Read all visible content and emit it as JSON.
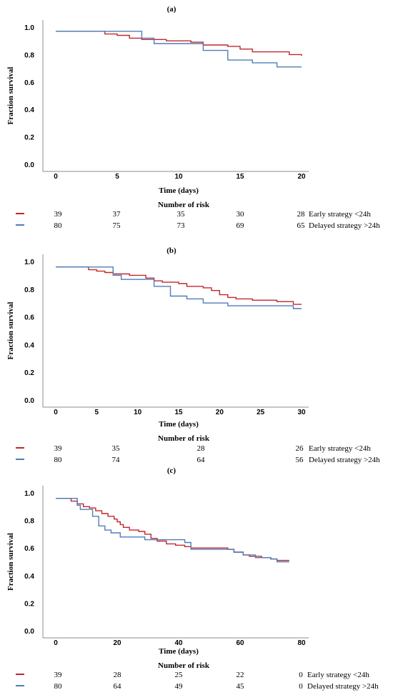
{
  "colors": {
    "early": "#c0272d",
    "delayed": "#4f7db8",
    "axis": "#8c8c8c"
  },
  "chart_data": [
    {
      "type": "line",
      "panel_label": "(a)",
      "xlabel": "Time (days)",
      "ylabel": "Fraction survival",
      "xlim": [
        0,
        20
      ],
      "ylim": [
        0,
        1
      ],
      "xticks": [
        "0",
        "5",
        "10",
        "15",
        "20"
      ],
      "yticks": [
        "0.0",
        "0.2",
        "0.4",
        "0.6",
        "0.8",
        "1.0"
      ],
      "series": [
        {
          "name": "Early strategy <24h",
          "color_key": "early",
          "steps": [
            [
              0,
              0.97
            ],
            [
              4,
              0.97
            ],
            [
              4,
              0.95
            ],
            [
              5,
              0.95
            ],
            [
              5,
              0.94
            ],
            [
              6,
              0.94
            ],
            [
              6,
              0.92
            ],
            [
              7,
              0.92
            ],
            [
              7,
              0.91
            ],
            [
              9,
              0.91
            ],
            [
              9,
              0.9
            ],
            [
              11,
              0.9
            ],
            [
              11,
              0.89
            ],
            [
              12,
              0.89
            ],
            [
              12,
              0.87
            ],
            [
              14,
              0.87
            ],
            [
              14,
              0.86
            ],
            [
              15,
              0.86
            ],
            [
              15,
              0.84
            ],
            [
              16,
              0.84
            ],
            [
              16,
              0.82
            ],
            [
              19,
              0.82
            ],
            [
              19,
              0.8
            ],
            [
              20,
              0.8
            ],
            [
              20,
              0.79
            ]
          ]
        },
        {
          "name": "Delayed strategy >24h",
          "color_key": "delayed",
          "steps": [
            [
              0,
              0.97
            ],
            [
              7,
              0.97
            ],
            [
              7,
              0.92
            ],
            [
              8,
              0.92
            ],
            [
              8,
              0.88
            ],
            [
              12,
              0.88
            ],
            [
              12,
              0.83
            ],
            [
              14,
              0.83
            ],
            [
              14,
              0.76
            ],
            [
              16,
              0.76
            ],
            [
              16,
              0.74
            ],
            [
              18,
              0.74
            ],
            [
              18,
              0.71
            ],
            [
              20,
              0.71
            ]
          ]
        }
      ],
      "risk": {
        "title": "Number of risk",
        "rows": [
          {
            "series": "Early strategy <24h",
            "color_key": "early",
            "values": [
              "39",
              "37",
              "35",
              "30",
              "28"
            ]
          },
          {
            "series": "Delayed strategy >24h",
            "color_key": "delayed",
            "values": [
              "80",
              "75",
              "73",
              "69",
              "65"
            ]
          }
        ]
      }
    },
    {
      "type": "line",
      "panel_label": "(b)",
      "xlabel": "Time (days)",
      "ylabel": "Fraction survival",
      "xlim": [
        0,
        30
      ],
      "ylim": [
        0,
        1
      ],
      "xticks": [
        "0",
        "5",
        "10",
        "15",
        "20",
        "25",
        "30"
      ],
      "yticks": [
        "0.0",
        "0.2",
        "0.4",
        "0.6",
        "0.8",
        "1.0"
      ],
      "series": [
        {
          "name": "Early strategy <24h",
          "color_key": "early",
          "steps": [
            [
              0,
              0.96
            ],
            [
              4,
              0.96
            ],
            [
              4,
              0.94
            ],
            [
              5,
              0.94
            ],
            [
              5,
              0.93
            ],
            [
              6,
              0.93
            ],
            [
              6,
              0.92
            ],
            [
              7,
              0.92
            ],
            [
              7,
              0.91
            ],
            [
              9,
              0.91
            ],
            [
              9,
              0.9
            ],
            [
              11,
              0.9
            ],
            [
              11,
              0.88
            ],
            [
              12,
              0.88
            ],
            [
              12,
              0.86
            ],
            [
              13,
              0.86
            ],
            [
              13,
              0.85
            ],
            [
              15,
              0.85
            ],
            [
              15,
              0.84
            ],
            [
              16,
              0.84
            ],
            [
              16,
              0.82
            ],
            [
              18,
              0.82
            ],
            [
              18,
              0.81
            ],
            [
              19,
              0.81
            ],
            [
              19,
              0.79
            ],
            [
              20,
              0.79
            ],
            [
              20,
              0.76
            ],
            [
              21,
              0.76
            ],
            [
              21,
              0.74
            ],
            [
              22,
              0.74
            ],
            [
              22,
              0.73
            ],
            [
              24,
              0.73
            ],
            [
              24,
              0.72
            ],
            [
              27,
              0.72
            ],
            [
              27,
              0.71
            ],
            [
              29,
              0.71
            ],
            [
              29,
              0.69
            ],
            [
              30,
              0.69
            ]
          ]
        },
        {
          "name": "Delayed strategy >24h",
          "color_key": "delayed",
          "steps": [
            [
              0,
              0.96
            ],
            [
              7,
              0.96
            ],
            [
              7,
              0.9
            ],
            [
              8,
              0.9
            ],
            [
              8,
              0.87
            ],
            [
              12,
              0.87
            ],
            [
              12,
              0.82
            ],
            [
              14,
              0.82
            ],
            [
              14,
              0.75
            ],
            [
              16,
              0.75
            ],
            [
              16,
              0.73
            ],
            [
              18,
              0.73
            ],
            [
              18,
              0.7
            ],
            [
              21,
              0.7
            ],
            [
              21,
              0.68
            ],
            [
              29,
              0.68
            ],
            [
              29,
              0.66
            ],
            [
              30,
              0.66
            ]
          ]
        }
      ],
      "risk": {
        "title": "Number of risk",
        "rows": [
          {
            "series": "Early strategy <24h",
            "color_key": "early",
            "values": [
              "39",
              "35",
              "28",
              "26"
            ]
          },
          {
            "series": "Delayed strategy >24h",
            "color_key": "delayed",
            "values": [
              "80",
              "74",
              "64",
              "56"
            ]
          }
        ]
      }
    },
    {
      "type": "line",
      "panel_label": "(c)",
      "xlabel": "Time (days)",
      "ylabel": "Fraction survival",
      "xlim": [
        0,
        80
      ],
      "ylim": [
        0,
        1
      ],
      "xticks": [
        "0",
        "20",
        "40",
        "60",
        "80"
      ],
      "yticks": [
        "0.0",
        "0.2",
        "0.4",
        "0.6",
        "0.8",
        "1.0"
      ],
      "series": [
        {
          "name": "Early strategy <24h",
          "color_key": "early",
          "steps": [
            [
              0,
              0.96
            ],
            [
              5,
              0.96
            ],
            [
              5,
              0.94
            ],
            [
              7,
              0.94
            ],
            [
              7,
              0.92
            ],
            [
              9,
              0.92
            ],
            [
              9,
              0.9
            ],
            [
              11,
              0.9
            ],
            [
              11,
              0.89
            ],
            [
              13,
              0.89
            ],
            [
              13,
              0.87
            ],
            [
              15,
              0.87
            ],
            [
              15,
              0.85
            ],
            [
              17,
              0.85
            ],
            [
              17,
              0.83
            ],
            [
              19,
              0.83
            ],
            [
              19,
              0.81
            ],
            [
              20,
              0.81
            ],
            [
              20,
              0.79
            ],
            [
              21,
              0.79
            ],
            [
              21,
              0.77
            ],
            [
              22,
              0.77
            ],
            [
              22,
              0.75
            ],
            [
              24,
              0.75
            ],
            [
              24,
              0.73
            ],
            [
              27,
              0.73
            ],
            [
              27,
              0.72
            ],
            [
              29,
              0.72
            ],
            [
              29,
              0.7
            ],
            [
              31,
              0.7
            ],
            [
              31,
              0.67
            ],
            [
              33,
              0.67
            ],
            [
              33,
              0.65
            ],
            [
              36,
              0.65
            ],
            [
              36,
              0.63
            ],
            [
              39,
              0.63
            ],
            [
              39,
              0.62
            ],
            [
              42,
              0.62
            ],
            [
              42,
              0.61
            ],
            [
              44,
              0.61
            ],
            [
              44,
              0.6
            ],
            [
              56,
              0.6
            ],
            [
              56,
              0.59
            ],
            [
              58,
              0.59
            ],
            [
              58,
              0.57
            ],
            [
              61,
              0.57
            ],
            [
              61,
              0.55
            ],
            [
              63,
              0.55
            ],
            [
              63,
              0.54
            ],
            [
              67,
              0.54
            ],
            [
              67,
              0.53
            ],
            [
              70,
              0.53
            ],
            [
              70,
              0.52
            ],
            [
              72,
              0.52
            ],
            [
              72,
              0.51
            ],
            [
              76,
              0.51
            ]
          ]
        },
        {
          "name": "Delayed strategy >24h",
          "color_key": "delayed",
          "steps": [
            [
              0,
              0.96
            ],
            [
              7,
              0.96
            ],
            [
              7,
              0.91
            ],
            [
              8,
              0.91
            ],
            [
              8,
              0.88
            ],
            [
              12,
              0.88
            ],
            [
              12,
              0.83
            ],
            [
              14,
              0.83
            ],
            [
              14,
              0.76
            ],
            [
              16,
              0.76
            ],
            [
              16,
              0.73
            ],
            [
              18,
              0.73
            ],
            [
              18,
              0.71
            ],
            [
              21,
              0.71
            ],
            [
              21,
              0.68
            ],
            [
              29,
              0.68
            ],
            [
              29,
              0.66
            ],
            [
              32,
              0.66
            ],
            [
              32,
              0.66
            ],
            [
              42,
              0.66
            ],
            [
              42,
              0.64
            ],
            [
              44,
              0.64
            ],
            [
              44,
              0.59
            ],
            [
              58,
              0.59
            ],
            [
              58,
              0.57
            ],
            [
              61,
              0.57
            ],
            [
              61,
              0.55
            ],
            [
              65,
              0.55
            ],
            [
              65,
              0.53
            ],
            [
              70,
              0.53
            ],
            [
              70,
              0.52
            ],
            [
              72,
              0.52
            ],
            [
              72,
              0.5
            ],
            [
              76,
              0.5
            ]
          ]
        }
      ],
      "risk": {
        "title": "Number of risk",
        "rows": [
          {
            "series": "Early strategy <24h",
            "color_key": "early",
            "values": [
              "39",
              "28",
              "25",
              "22",
              "0"
            ]
          },
          {
            "series": "Delayed strategy >24h",
            "color_key": "delayed",
            "values": [
              "80",
              "64",
              "49",
              "45",
              "0"
            ]
          }
        ]
      }
    }
  ]
}
